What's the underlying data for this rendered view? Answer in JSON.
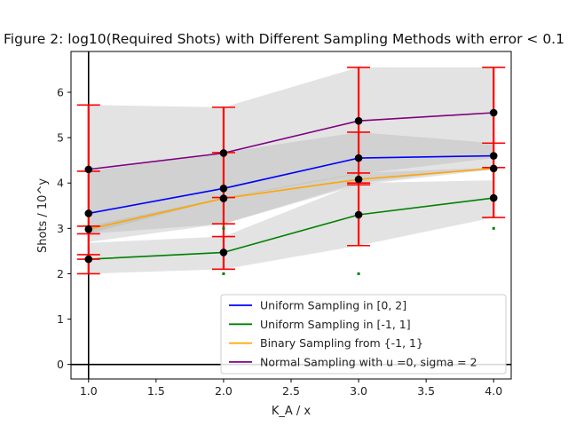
{
  "chart_data": {
    "type": "line",
    "title": "Figure 2: log10(Required Shots) with Different Sampling Methods with error < 0.1",
    "xlabel": "K_A / x",
    "ylabel": "Shots / 10^y",
    "xlim": [
      0.87,
      4.13
    ],
    "ylim": [
      -0.32,
      6.9
    ],
    "xticks": [
      "1.0",
      "1.5",
      "2.0",
      "2.5",
      "3.0",
      "3.5",
      "4.0"
    ],
    "yticks": [
      "0",
      "1",
      "2",
      "3",
      "4",
      "5",
      "6"
    ],
    "x": [
      1,
      2,
      3,
      4
    ],
    "legend_position": "lower-right",
    "grid": false,
    "series": [
      {
        "name": "Uniform Sampling in [0, 2]",
        "color": "#0000ff",
        "values": [
          3.33,
          3.88,
          4.55,
          4.6
        ],
        "band_lower": [
          2.88,
          3.1,
          4.0,
          4.34
        ],
        "band_upper": [
          4.26,
          4.67,
          5.12,
          4.88
        ]
      },
      {
        "name": "Uniform Sampling in [-1, 1]",
        "color": "#008000",
        "values": [
          2.32,
          2.47,
          3.3,
          3.67
        ],
        "band_lower": [
          2.0,
          2.1,
          2.62,
          3.24
        ],
        "band_upper": [
          2.68,
          2.82,
          4.0,
          4.06
        ]
      },
      {
        "name": "Binary Sampling from {-1, 1}",
        "color": "#ffa500",
        "values": [
          2.98,
          3.66,
          4.08,
          4.32
        ],
        "band_lower": [
          2.7,
          3.1,
          3.96,
          4.3
        ],
        "band_upper": [
          3.05,
          3.68,
          4.22,
          4.34
        ]
      },
      {
        "name": "Normal Sampling with u =0, sigma = 2",
        "color": "#800080",
        "values": [
          4.3,
          4.66,
          5.37,
          5.55
        ],
        "band_lower": [
          2.88,
          3.66,
          4.2,
          4.55
        ],
        "band_upper": [
          5.72,
          5.67,
          6.55,
          6.55
        ]
      }
    ],
    "errorbars": [
      {
        "x": 1,
        "lower": 2.0,
        "upper": 5.72,
        "caps": [
          2.0,
          2.32,
          2.42,
          2.88,
          3.05,
          4.26,
          5.72
        ]
      },
      {
        "x": 2,
        "lower": 2.1,
        "upper": 5.67,
        "caps": [
          2.1,
          2.82,
          3.1,
          3.68,
          4.67,
          5.67
        ]
      },
      {
        "x": 3,
        "lower": 2.62,
        "upper": 6.55,
        "caps": [
          2.62,
          3.96,
          4.0,
          4.22,
          5.12,
          6.55
        ]
      },
      {
        "x": 4,
        "lower": 3.24,
        "upper": 6.55,
        "caps": [
          3.24,
          4.34,
          4.88,
          6.55
        ]
      }
    ],
    "outliers": [
      {
        "x": 2,
        "y": 3.0
      },
      {
        "x": 2,
        "y": 2.0
      },
      {
        "x": 3,
        "y": 2.0
      },
      {
        "x": 4,
        "y": 3.0
      }
    ],
    "reference_lines": {
      "vertical_x": 1,
      "horizontal_y": 0
    },
    "colors": {
      "errorbar": "#ff0000",
      "marker": "#000000",
      "band": "#b0b0b0",
      "outlier": "#008000"
    }
  }
}
